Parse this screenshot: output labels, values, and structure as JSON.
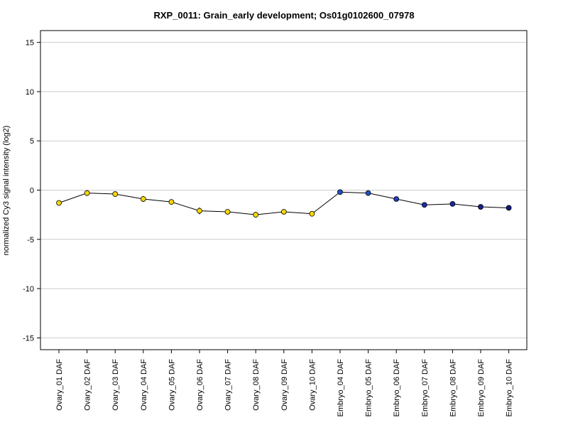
{
  "chart_data": {
    "type": "line",
    "title": "RXP_0011: Grain_early development; Os01g0102600_07978",
    "xlabel": "",
    "ylabel": "normalized Cy3 signal intensity (log2)",
    "ylim": [
      -16.2,
      16.2
    ],
    "yticks": [
      15,
      10,
      5,
      0,
      -5,
      -10,
      -15
    ],
    "ytick_labels": [
      "15",
      "10",
      "5",
      "0",
      "-5",
      "-10",
      "-15"
    ],
    "grid": true,
    "categories": [
      "Ovary_01 DAF",
      "Ovary_02 DAF",
      "Ovary_03 DAF",
      "Ovary_04 DAF",
      "Ovary_05 DAF",
      "Ovary_06 DAF",
      "Ovary_07 DAF",
      "Ovary_08 DAF",
      "Ovary_09 DAF",
      "Ovary_10 DAF",
      "Embryo_04 DAF",
      "Embryo_05 DAF",
      "Embryo_06 DAF",
      "Embryo_07 DAF",
      "Embryo_08 DAF",
      "Embryo_09 DAF",
      "Embryo_10 DAF"
    ],
    "values": [
      -1.3,
      -0.3,
      -0.4,
      -0.9,
      -1.2,
      -2.1,
      -2.2,
      -2.5,
      -2.2,
      -2.4,
      -0.2,
      -0.3,
      -0.9,
      -1.5,
      -1.4,
      -1.7,
      -1.8
    ],
    "errors": [
      0.15,
      0.3,
      0.2,
      0.3,
      0.15,
      0.35,
      0.2,
      0.3,
      0.2,
      0.15,
      0.15,
      0.15,
      0.1,
      0.1,
      0.15,
      0.1,
      0.1
    ],
    "point_colors": [
      "#f5d800",
      "#f5d800",
      "#f5d800",
      "#f5d800",
      "#f5d800",
      "#f5d800",
      "#f5d800",
      "#f5d800",
      "#f5d800",
      "#f5d800",
      "#1f4fc8",
      "#1f4fc8",
      "#1f3fb8",
      "#1a2fa8",
      "#18289c",
      "#141f8c",
      "#101880"
    ],
    "colors": {
      "line": "#000000",
      "grid": "#cccccc",
      "point_edge": "#000000",
      "ovary": "#f5d800",
      "embryo": "#1f3fb8"
    }
  }
}
